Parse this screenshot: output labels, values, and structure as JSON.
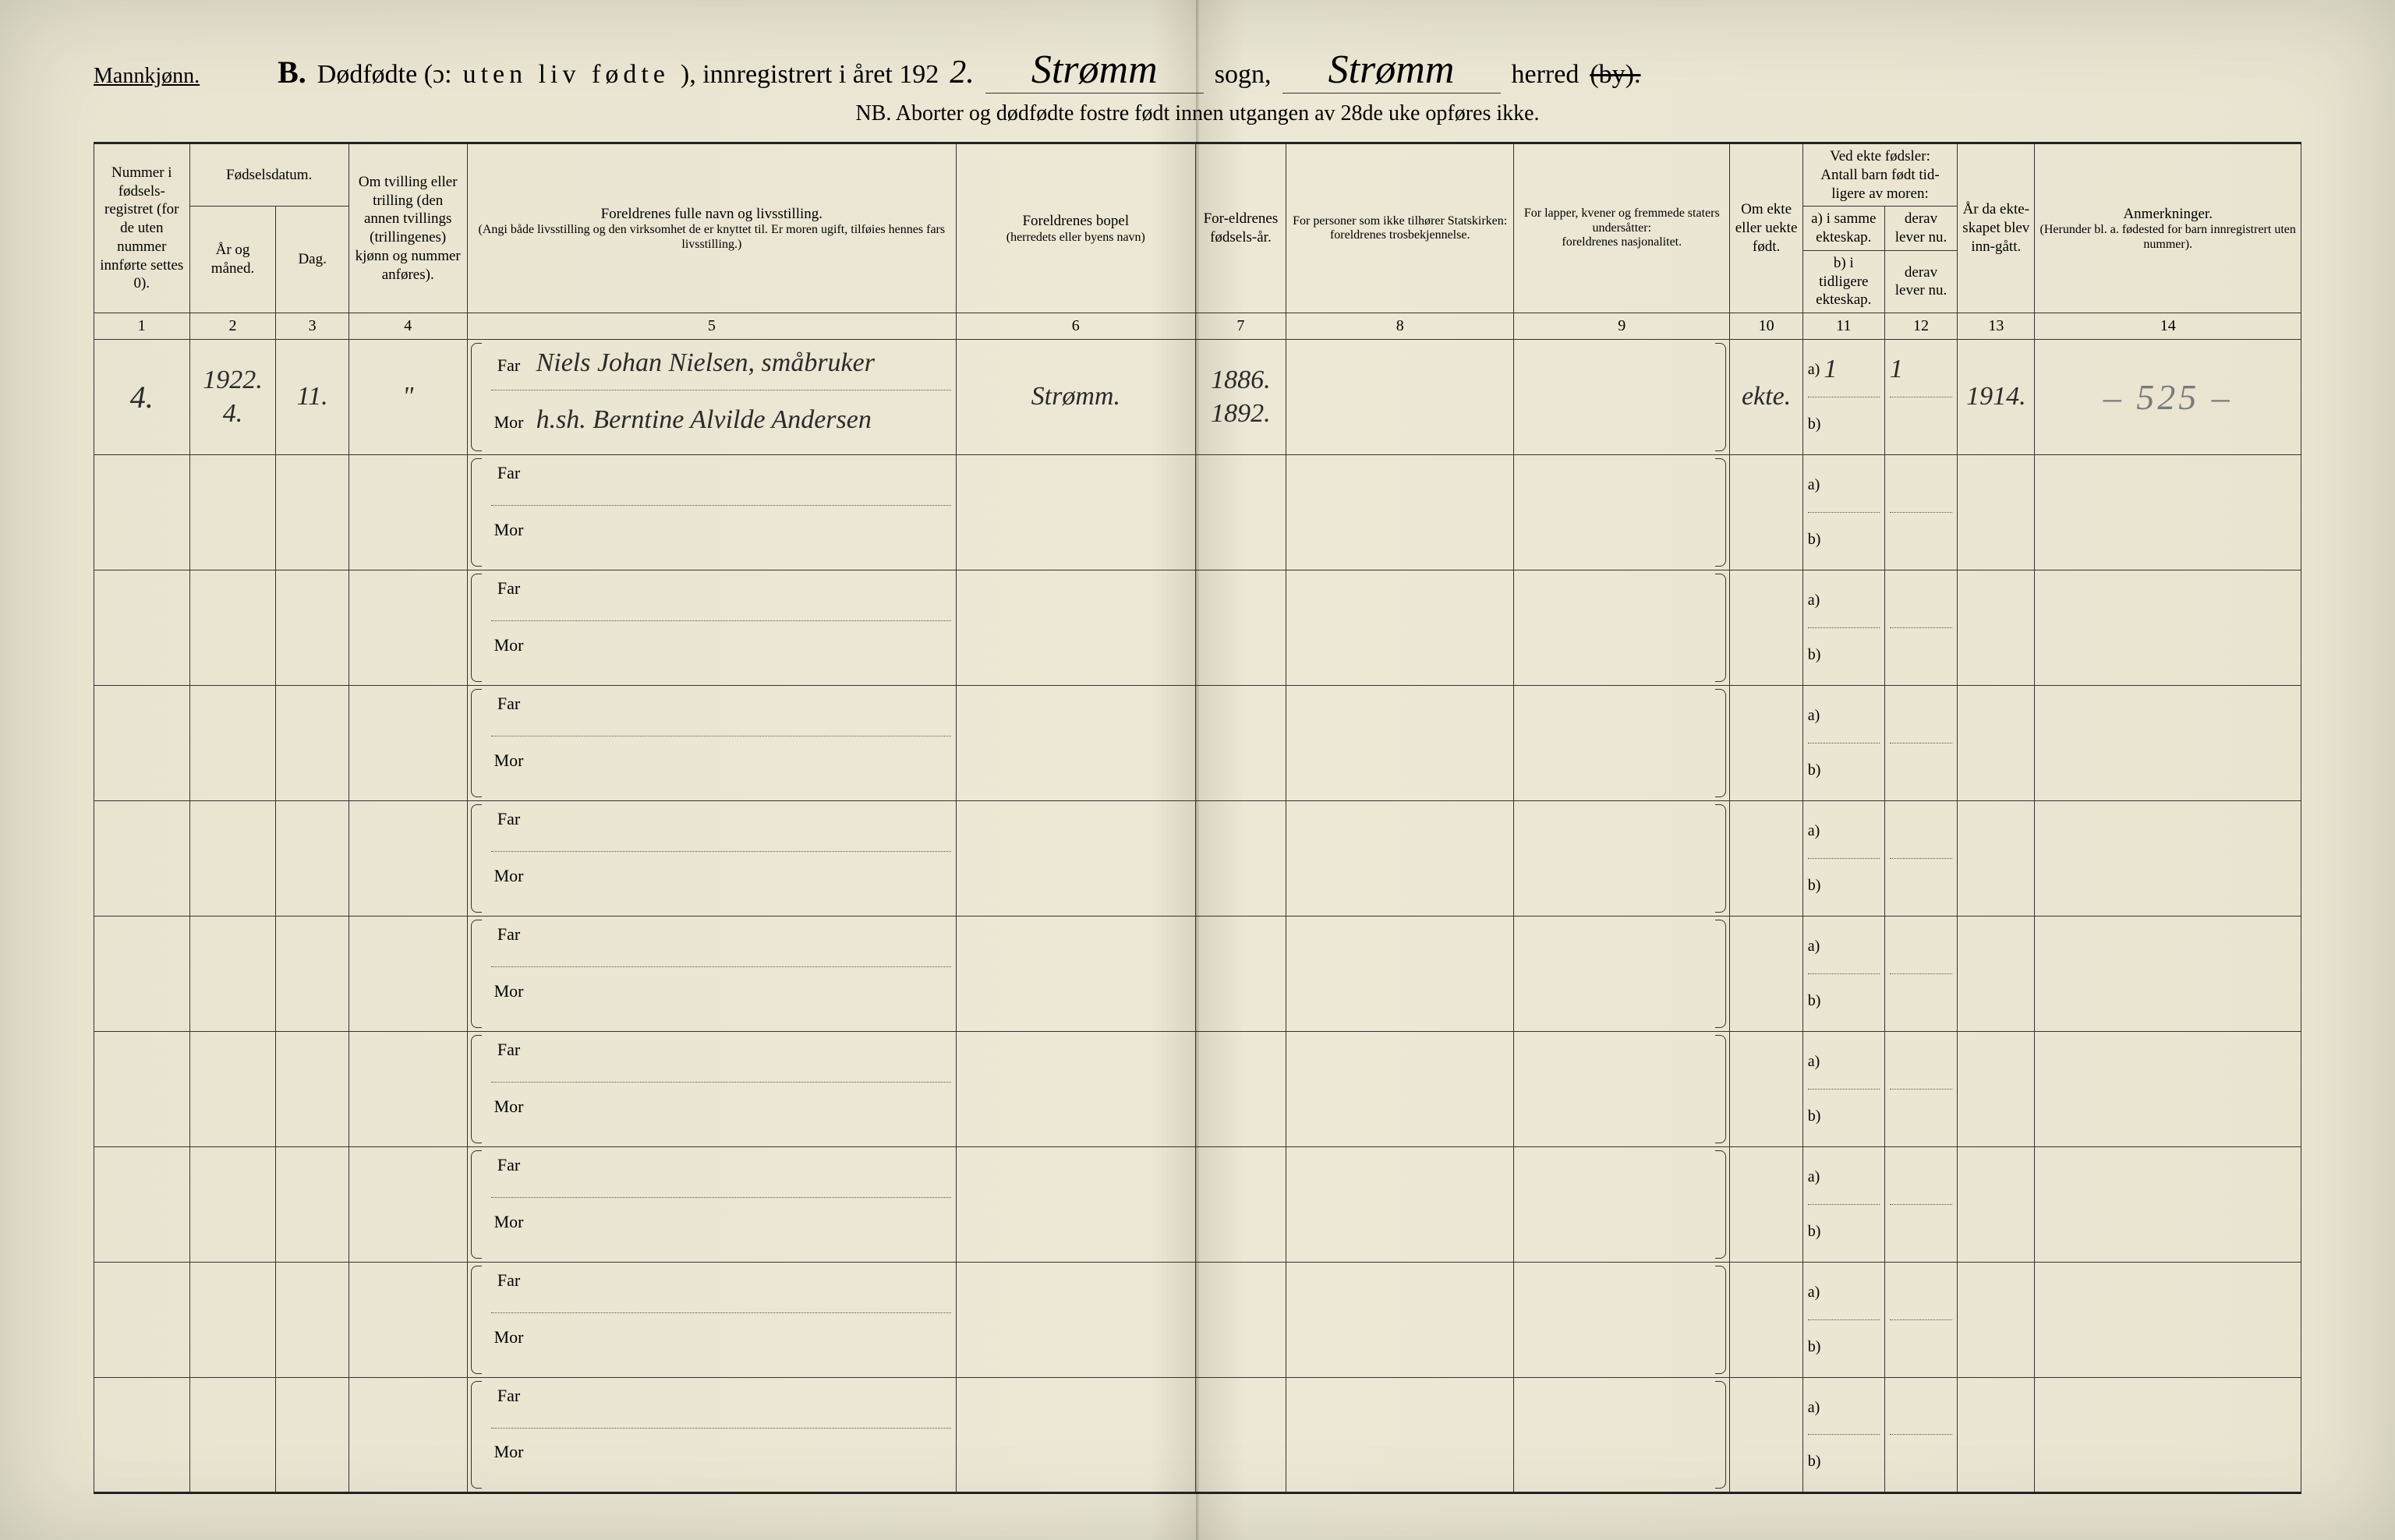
{
  "header": {
    "gender_label": "Mannkjønn.",
    "section_letter": "B.",
    "title_prefix": "Dødfødte (ɔ:",
    "title_spaced": "uten liv fødte",
    "title_suffix": "), innregistrert i året 192",
    "year_digit": "2.",
    "sogn_value": "Strømm",
    "sogn_label": "sogn,",
    "herred_value": "Strømm",
    "herred_label": "herred",
    "by_struck": "(by).",
    "nb_line": "NB. Aborter og dødfødte fostre født innen utgangen av 28de uke opføres ikke."
  },
  "columns": {
    "c1": "Nummer i fødsels-registret (for de uten nummer innførte settes 0).",
    "c2_top": "Fødselsdatum.",
    "c2a": "År og måned.",
    "c2b": "Dag.",
    "c3": "Om tvilling eller trilling (den annen tvillings (trillingenes) kjønn og nummer anføres).",
    "c5_top": "Foreldrenes fulle navn og livsstilling.",
    "c5_sub": "(Angi både livsstilling og den virksomhet de er knyttet til. Er moren ugift, tilføies hennes fars livsstilling.)",
    "c6_top": "Foreldrenes bopel",
    "c6_sub": "(herredets eller byens navn)",
    "c7": "For-eldrenes fødsels-år.",
    "c8_top": "For personer som ikke tilhører Statskirken:",
    "c8_sub": "foreldrenes trosbekjennelse.",
    "c9_top": "For lapper, kvener og fremmede staters undersåtter:",
    "c9_sub": "foreldrenes nasjonalitet.",
    "c10": "Om ekte eller uekte født.",
    "c11_top": "Ved ekte fødsler:",
    "c11_mid": "Antall barn født tid-ligere av moren:",
    "c11a": "a) i samme ekteskap.",
    "c11b": "b) i tidligere ekteskap.",
    "c12a": "derav lever nu.",
    "c12b": "derav lever nu.",
    "c13": "År da ekte-skapet blev inn-gått.",
    "c14_top": "Anmerkninger.",
    "c14_sub": "(Herunder bl. a. fødested for barn innregistrert uten nummer).",
    "nums": [
      "1",
      "2",
      "3",
      "4",
      "5",
      "6",
      "7",
      "8",
      "9",
      "10",
      "11",
      "12",
      "13",
      "14"
    ]
  },
  "labels": {
    "far": "Far",
    "mor": "Mor",
    "a": "a)",
    "b": "b)"
  },
  "row1": {
    "nummer": "4.",
    "aar_mnd_top": "1922.",
    "aar_mnd_bot": "4.",
    "dag": "11.",
    "tvilling": "\"",
    "far_name": "Niels Johan Nielsen, småbruker",
    "mor_name": "h.sh. Berntine Alvilde Andersen",
    "bopel": "Strømm.",
    "far_aar": "1886.",
    "mor_aar": "1892.",
    "ekte": "ekte.",
    "a_val": "1",
    "a_lever": "1",
    "ekteskap_aar": "1914.",
    "anm": "– 525 –"
  },
  "row_count": 10,
  "colors": {
    "paper": "#e8e4d0",
    "ink": "#222222",
    "pencil": "#7a7a7a",
    "rule": "#333333"
  }
}
